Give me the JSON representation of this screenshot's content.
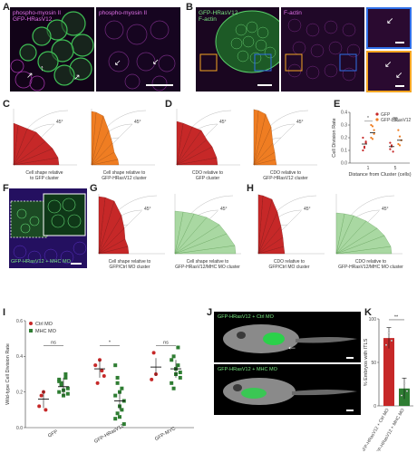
{
  "panels": {
    "A": {
      "letter": "A",
      "label_left": "phospho-myosin II\nGFP-HRasV12",
      "label_right": "phospho-myosin II"
    },
    "B": {
      "letter": "B",
      "label_left": "GFP-HRasV12\nF-actin",
      "label_right": "F-actin"
    },
    "C": {
      "letter": "C",
      "caption_1": "Cell shape relative\nto GFP cluster",
      "caption_2": "Cell shape relative to\nGFP-HRasV12 cluster",
      "angle_label": "45°"
    },
    "D": {
      "letter": "D",
      "caption_1": "CDO relative to\nGFP cluster",
      "caption_2": "CDO relative to\nGFP-HRasV12 cluster",
      "angle_label": "45°"
    },
    "E": {
      "letter": "E"
    },
    "F": {
      "letter": "F",
      "label": "GFP-HRasV12 + MHC MO"
    },
    "G": {
      "letter": "G",
      "caption_1": "Cell shape relative to\nGFP/Ctrl MO cluster",
      "caption_2": "Cell shape relative to\nGFP-HRasV12/MHC MO cluster",
      "angle_label": "45°"
    },
    "H": {
      "letter": "H",
      "caption_1": "CDO relative to\nGFP/Ctrl MO cluster",
      "caption_2": "CDO relative to\nGFP-HRasV12/MHC MO cluster",
      "angle_label": "45°"
    },
    "I": {
      "letter": "I"
    },
    "J": {
      "letter": "J",
      "label_top": "GFP-HRasV12 + Ctrl MO",
      "label_bottom": "GFP-HRasV12 + MHC MO"
    },
    "K": {
      "letter": "K"
    }
  },
  "colors": {
    "red": "#c62828",
    "orange": "#ef7d22",
    "green": "#a9d8a2",
    "darkgreen": "#2e7d32",
    "magenta": "#b04cc0"
  },
  "chart_data": [
    {
      "id": "E",
      "type": "scatter",
      "ylabel": "Cell Division Rate",
      "xlabel": "Distance from Cluster (cells)",
      "categories": [
        "1",
        "5"
      ],
      "ylim": [
        0,
        0.4
      ],
      "yticks": [
        "0.0",
        "0.1",
        "0.2",
        "0.3",
        "0.4"
      ],
      "legend": [
        "GFP",
        "GFP-HRasV12"
      ],
      "significance": [
        "*",
        "ns"
      ],
      "series": [
        {
          "name": "GFP",
          "means": [
            0.15,
            0.13
          ],
          "points": [
            [
              0.1,
              0.13,
              0.17,
              0.2,
              0.12,
              0.16
            ],
            [
              0.11,
              0.14,
              0.09,
              0.16,
              0.13
            ]
          ]
        },
        {
          "name": "GFP-HRasV12",
          "means": [
            0.24,
            0.18
          ],
          "points": [
            [
              0.2,
              0.29,
              0.23,
              0.3,
              0.19,
              0.26
            ],
            [
              0.15,
              0.21,
              0.18,
              0.26,
              0.14
            ]
          ]
        }
      ]
    },
    {
      "id": "I",
      "type": "scatter",
      "ylabel": "Wild-type Cell Division Rate",
      "categories": [
        "GFP",
        "GFP-HRasV12",
        "GFP-MYC"
      ],
      "ylim": [
        0,
        0.6
      ],
      "yticks": [
        "0.0",
        "0.2",
        "0.4",
        "0.6"
      ],
      "legend": [
        "Ctrl MO",
        "MHC MO"
      ],
      "significance": [
        "ns",
        "*",
        "ns"
      ],
      "series": [
        {
          "name": "Ctrl MO",
          "means": [
            0.16,
            0.33,
            0.34
          ],
          "points": [
            [
              0.12,
              0.18,
              0.2,
              0.1
            ],
            [
              0.35,
              0.25,
              0.38,
              0.32,
              0.29
            ],
            [
              0.27,
              0.42,
              0.3
            ]
          ]
        },
        {
          "name": "MHC MO",
          "means": [
            0.23,
            0.15,
            0.33
          ],
          "points": [
            [
              0.2,
              0.25,
              0.18,
              0.28,
              0.22,
              0.26,
              0.24,
              0.21,
              0.3,
              0.19,
              0.27
            ],
            [
              0.05,
              0.28,
              0.2,
              0.1,
              0.15,
              0.35,
              0.08,
              0.12,
              0.22,
              0.02,
              0.18,
              0.25,
              0.06
            ],
            [
              0.25,
              0.4,
              0.3,
              0.35,
              0.28,
              0.38,
              0.22,
              0.33,
              0.45,
              0.31
            ]
          ]
        }
      ]
    },
    {
      "id": "K",
      "type": "bar",
      "ylabel": "% Embryos with ITLS",
      "categories": [
        "GFP-HRasV12 + Ctrl MO",
        "GFP-HRasV12 + MHC MO"
      ],
      "values": [
        78,
        20
      ],
      "ylim": [
        0,
        100
      ],
      "yticks": [
        "0",
        "50",
        "100"
      ],
      "significance": "**"
    }
  ]
}
